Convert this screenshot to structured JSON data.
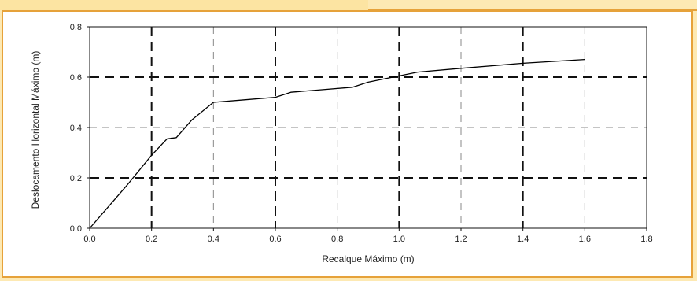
{
  "chart_data": {
    "type": "line",
    "title": "",
    "xlabel": "Recalque Máximo (m)",
    "ylabel": "Deslocamento Horizontal Máximo (m)",
    "xlim": [
      0.0,
      1.8
    ],
    "ylim": [
      0.0,
      0.8
    ],
    "xticks": [
      0.0,
      0.2,
      0.4,
      0.6,
      0.8,
      1.0,
      1.2,
      1.4,
      1.6,
      1.8
    ],
    "yticks": [
      0.0,
      0.2,
      0.4,
      0.6,
      0.8
    ],
    "xtick_labels": [
      "0.0",
      "0.2",
      "0.4",
      "0.6",
      "0.8",
      "1.0",
      "1.2",
      "1.4",
      "1.6",
      "1.8"
    ],
    "ytick_labels": [
      "0.0",
      "0.2",
      "0.4",
      "0.6",
      "0.8"
    ],
    "grid": true,
    "series": [
      {
        "color": "#000000",
        "x": [
          0.0,
          0.12,
          0.2,
          0.25,
          0.28,
          0.33,
          0.4,
          0.5,
          0.6,
          0.65,
          0.75,
          0.85,
          0.9,
          1.0,
          1.06,
          1.2,
          1.4,
          1.6
        ],
        "y": [
          0.0,
          0.17,
          0.29,
          0.355,
          0.36,
          0.43,
          0.5,
          0.51,
          0.52,
          0.54,
          0.55,
          0.56,
          0.58,
          0.605,
          0.62,
          0.635,
          0.655,
          0.67
        ]
      }
    ]
  }
}
